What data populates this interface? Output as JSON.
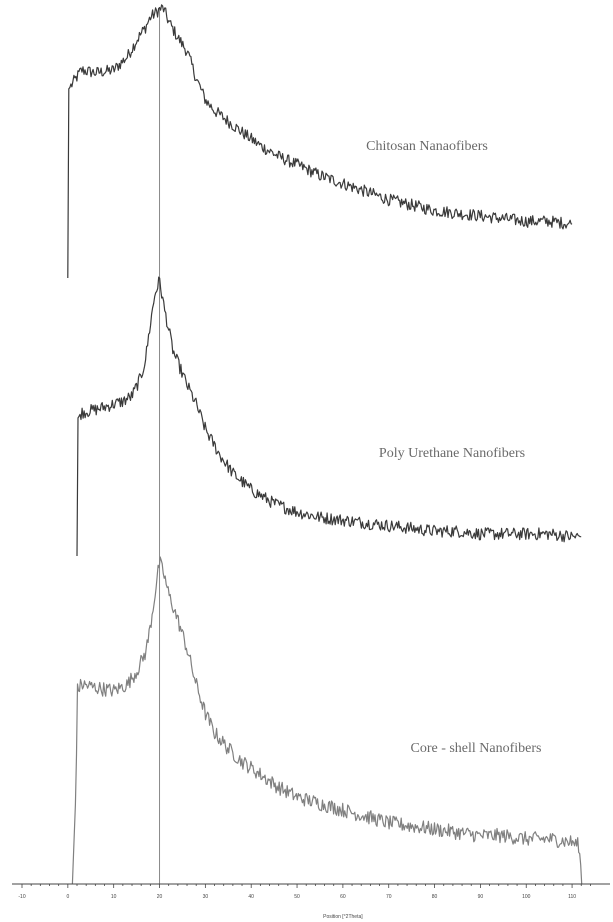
{
  "chart_data": {
    "type": "line",
    "xlabel": "Position [°2Theta]",
    "xlim": [
      -10,
      115
    ],
    "x_ticks": [
      "-10",
      "0",
      "10",
      "20",
      "30",
      "40",
      "50",
      "60",
      "70",
      "80",
      "90",
      "100",
      "110"
    ],
    "reference_line_x": 20,
    "series": [
      {
        "name": "Chitosan Nanaofibers",
        "color": "#3a3a3a",
        "x": [
          0,
          0.2,
          1,
          3,
          6,
          10,
          13,
          15,
          17,
          18,
          19,
          20,
          20.8,
          22,
          24,
          26,
          28,
          30,
          32,
          35,
          38,
          42,
          46,
          50,
          55,
          60,
          65,
          70,
          75,
          80,
          85,
          90,
          95,
          100,
          105,
          110,
          110.1
        ],
        "height": [
          0,
          0.7,
          0.72,
          0.77,
          0.76,
          0.77,
          0.82,
          0.88,
          0.93,
          0.965,
          0.98,
          0.995,
          1.0,
          0.95,
          0.89,
          0.84,
          0.74,
          0.66,
          0.62,
          0.58,
          0.54,
          0.49,
          0.45,
          0.42,
          0.38,
          0.35,
          0.32,
          0.29,
          0.27,
          0.25,
          0.24,
          0.23,
          0.22,
          0.21,
          0.21,
          0.2,
          0.2
        ]
      },
      {
        "name": "Poly Urethane Nanofibers",
        "color": "#3a3a3a",
        "x": [
          2,
          2.2,
          3,
          6,
          10,
          12,
          14,
          16,
          17,
          18,
          19,
          20,
          21,
          22,
          23,
          24,
          26,
          28,
          30,
          33,
          36,
          40,
          45,
          50,
          55,
          60,
          65,
          70,
          75,
          80,
          85,
          90,
          95,
          100,
          105,
          110,
          112,
          112.1
        ],
        "height": [
          0,
          0.5,
          0.52,
          0.53,
          0.55,
          0.56,
          0.58,
          0.65,
          0.72,
          0.84,
          0.95,
          1.0,
          0.9,
          0.82,
          0.74,
          0.7,
          0.62,
          0.55,
          0.46,
          0.37,
          0.3,
          0.24,
          0.19,
          0.16,
          0.14,
          0.13,
          0.12,
          0.11,
          0.1,
          0.09,
          0.09,
          0.08,
          0.08,
          0.08,
          0.08,
          0.07,
          0.07,
          0
        ]
      },
      {
        "name": "Core - shell Nanofibers",
        "color": "#808080",
        "x": [
          1,
          1.8,
          2,
          3,
          6,
          10,
          13,
          15,
          17,
          18,
          19,
          20,
          21,
          22,
          24,
          26,
          28,
          30,
          32,
          35,
          38,
          42,
          46,
          50,
          55,
          60,
          65,
          70,
          75,
          80,
          85,
          90,
          95,
          100,
          105,
          110,
          111.5,
          112,
          112.1
        ],
        "height": [
          0,
          0.3,
          0.6,
          0.62,
          0.61,
          0.6,
          0.62,
          0.66,
          0.72,
          0.8,
          0.9,
          1.0,
          0.96,
          0.9,
          0.82,
          0.73,
          0.62,
          0.53,
          0.47,
          0.42,
          0.38,
          0.34,
          0.3,
          0.27,
          0.25,
          0.23,
          0.21,
          0.19,
          0.18,
          0.17,
          0.16,
          0.15,
          0.15,
          0.14,
          0.14,
          0.13,
          0.12,
          0.04,
          0.0
        ]
      }
    ]
  }
}
